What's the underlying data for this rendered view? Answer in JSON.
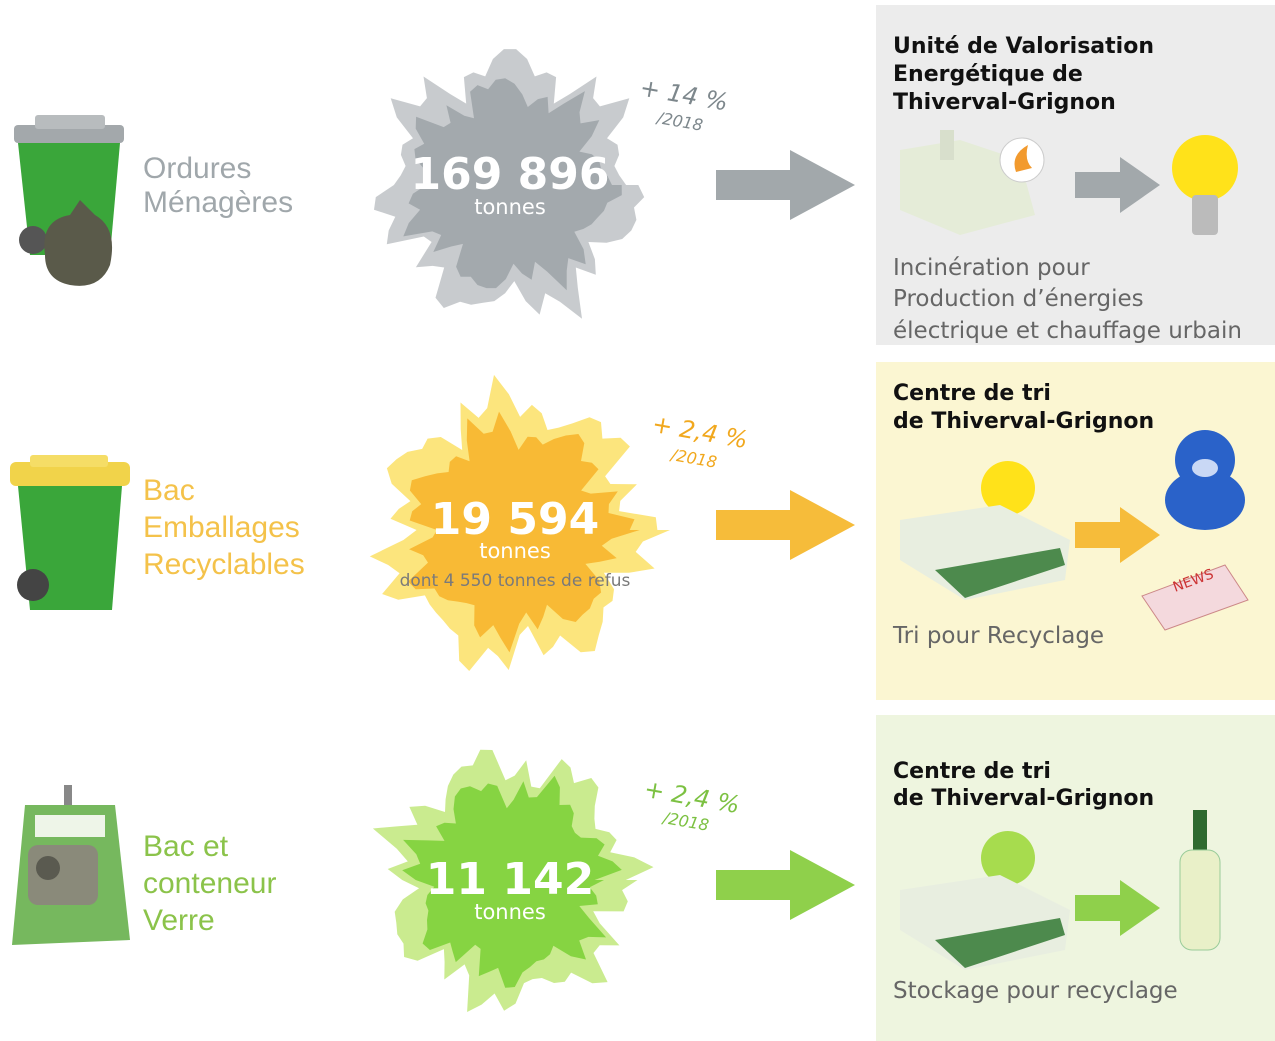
{
  "rows": [
    {
      "label": [
        "Ordures",
        "Ménagères"
      ],
      "amount": "169 896",
      "unit": "tonnes",
      "change": "+ 14 %",
      "change_ref": "/2018",
      "facility": [
        "Unité de Valorisation",
        "Energétique de",
        "Thiverval-Grignon"
      ],
      "description": [
        "Incinération pour",
        "Production d’énergies",
        "électrique et chauffage urbain"
      ]
    },
    {
      "label": [
        "Bac",
        "Emballages",
        "Recyclables"
      ],
      "amount": "19 594",
      "unit": "tonnes",
      "note": "dont 4 550 tonnes de refus",
      "change": "+ 2,4 %",
      "change_ref": "/2018",
      "facility": [
        "Centre de tri",
        "de Thiverval-Grignon"
      ],
      "description": [
        "Tri pour Recyclage"
      ],
      "image_label": "NEWS"
    },
    {
      "label": [
        "Bac et",
        "conteneur",
        "Verre"
      ],
      "amount": "11 142",
      "unit": "tonnes",
      "change": "+ 2,4 %",
      "change_ref": "/2018",
      "facility": [
        "Centre de tri",
        "de Thiverval-Grignon"
      ],
      "description": [
        "Stockage pour recyclage"
      ]
    }
  ]
}
